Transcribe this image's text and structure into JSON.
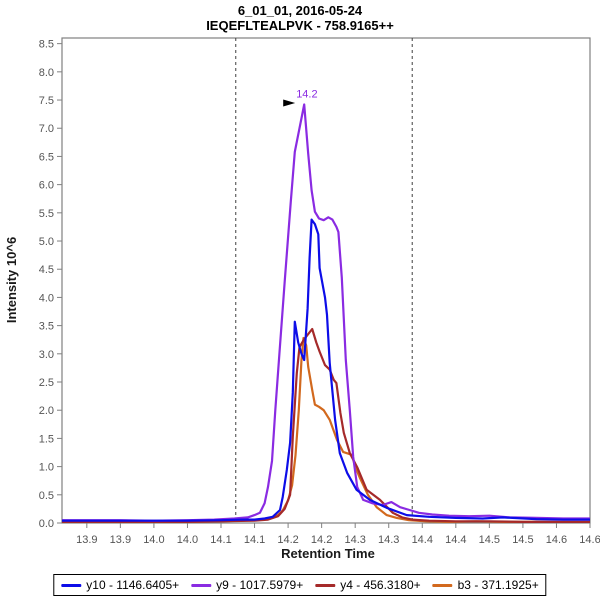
{
  "header": {
    "line1": "6_01_01, 2016-05-24",
    "line2": "IEQEFLTEALPVK - 758.9165++"
  },
  "chart_data": {
    "type": "line",
    "title": "6_01_01, 2016-05-24",
    "subtitle": "IEQEFLTEALPVK - 758.9165++",
    "xlabel": "Retention Time",
    "ylabel": "Intensity 10^6",
    "xlim": [
      13.813,
      14.6
    ],
    "ylim": [
      0,
      8.6
    ],
    "grid": false,
    "legend_position": "bottom",
    "frame_color": "#808080",
    "x_ticks": {
      "values": [
        13.85,
        13.9,
        13.95,
        14.0,
        14.05,
        14.1,
        14.15,
        14.2,
        14.25,
        14.3,
        14.35,
        14.4,
        14.45,
        14.5,
        14.55,
        14.6
      ],
      "labels": [
        "13.9",
        "13.9",
        "14.0",
        "14.0",
        "14.1",
        "14.1",
        "14.2",
        "14.2",
        "14.3",
        "14.3",
        "14.4",
        "14.4",
        "14.5",
        "14.5",
        "14.6",
        "14.6"
      ]
    },
    "y_ticks": {
      "values": [
        0,
        0.5,
        1,
        1.5,
        2,
        2.5,
        3,
        3.5,
        4,
        4.5,
        5,
        5.5,
        6,
        6.5,
        7,
        7.5,
        8,
        8.5
      ],
      "labels": [
        "0.0",
        "0.5",
        "1.0",
        "1.5",
        "2.0",
        "2.5",
        "3.0",
        "3.5",
        "4.0",
        "4.5",
        "5.0",
        "5.5",
        "6.0",
        "6.5",
        "7.0",
        "7.5",
        "8.0",
        "8.5"
      ]
    },
    "peak_boundaries": {
      "values": [
        14.072,
        14.335
      ],
      "style": "dashed",
      "color": "#3f3f3f"
    },
    "annotation": {
      "text": "14.2",
      "x": 14.174,
      "y": 7.42,
      "color": "#8A2BE2"
    },
    "series": [
      {
        "id": "y10",
        "label": "y10 - 1146.6405+",
        "color": "#0D0DE8",
        "points": [
          [
            13.813,
            0.04
          ],
          [
            13.85,
            0.04
          ],
          [
            13.9,
            0.04
          ],
          [
            13.95,
            0.04
          ],
          [
            14.0,
            0.04
          ],
          [
            14.05,
            0.05
          ],
          [
            14.08,
            0.06
          ],
          [
            14.1,
            0.06
          ],
          [
            14.115,
            0.08
          ],
          [
            14.127,
            0.11
          ],
          [
            14.138,
            0.23
          ],
          [
            14.142,
            0.46
          ],
          [
            14.148,
            0.94
          ],
          [
            14.153,
            1.42
          ],
          [
            14.157,
            2.31
          ],
          [
            14.16,
            3.57
          ],
          [
            14.165,
            3.2
          ],
          [
            14.17,
            3.0
          ],
          [
            14.174,
            2.89
          ],
          [
            14.179,
            3.8
          ],
          [
            14.182,
            4.7
          ],
          [
            14.185,
            5.38
          ],
          [
            14.19,
            5.3
          ],
          [
            14.195,
            5.12
          ],
          [
            14.197,
            4.52
          ],
          [
            14.205,
            4.0
          ],
          [
            14.208,
            3.69
          ],
          [
            14.212,
            2.84
          ],
          [
            14.22,
            1.83
          ],
          [
            14.227,
            1.24
          ],
          [
            14.238,
            0.89
          ],
          [
            14.252,
            0.59
          ],
          [
            14.272,
            0.41
          ],
          [
            14.297,
            0.27
          ],
          [
            14.327,
            0.14
          ],
          [
            14.36,
            0.11
          ],
          [
            14.4,
            0.09
          ],
          [
            14.44,
            0.08
          ],
          [
            14.47,
            0.1
          ],
          [
            14.52,
            0.07
          ],
          [
            14.56,
            0.06
          ],
          [
            14.6,
            0.06
          ]
        ]
      },
      {
        "id": "y9",
        "label": "y9 - 1017.5979+",
        "color": "#8A2BE2",
        "points": [
          [
            13.813,
            0.05
          ],
          [
            13.85,
            0.05
          ],
          [
            13.9,
            0.05
          ],
          [
            13.95,
            0.04
          ],
          [
            14.0,
            0.05
          ],
          [
            14.04,
            0.06
          ],
          [
            14.07,
            0.08
          ],
          [
            14.09,
            0.1
          ],
          [
            14.1,
            0.14
          ],
          [
            14.108,
            0.18
          ],
          [
            14.115,
            0.35
          ],
          [
            14.12,
            0.64
          ],
          [
            14.126,
            1.1
          ],
          [
            14.131,
            2.0
          ],
          [
            14.137,
            3.0
          ],
          [
            14.145,
            4.28
          ],
          [
            14.154,
            5.7
          ],
          [
            14.16,
            6.58
          ],
          [
            14.167,
            7.0
          ],
          [
            14.174,
            7.42
          ],
          [
            14.18,
            6.55
          ],
          [
            14.185,
            5.9
          ],
          [
            14.19,
            5.52
          ],
          [
            14.196,
            5.4
          ],
          [
            14.203,
            5.37
          ],
          [
            14.21,
            5.42
          ],
          [
            14.216,
            5.38
          ],
          [
            14.222,
            5.25
          ],
          [
            14.225,
            5.16
          ],
          [
            14.23,
            4.35
          ],
          [
            14.236,
            2.89
          ],
          [
            14.242,
            2.0
          ],
          [
            14.247,
            1.17
          ],
          [
            14.253,
            0.64
          ],
          [
            14.262,
            0.41
          ],
          [
            14.276,
            0.35
          ],
          [
            14.291,
            0.32
          ],
          [
            14.304,
            0.37
          ],
          [
            14.317,
            0.28
          ],
          [
            14.331,
            0.23
          ],
          [
            14.345,
            0.18
          ],
          [
            14.365,
            0.15
          ],
          [
            14.39,
            0.13
          ],
          [
            14.42,
            0.12
          ],
          [
            14.45,
            0.13
          ],
          [
            14.48,
            0.1
          ],
          [
            14.52,
            0.09
          ],
          [
            14.56,
            0.08
          ],
          [
            14.6,
            0.08
          ]
        ]
      },
      {
        "id": "y4",
        "label": "y4 - 456.3180+",
        "color": "#A52A2A",
        "points": [
          [
            13.813,
            0.02
          ],
          [
            13.9,
            0.02
          ],
          [
            14.0,
            0.02
          ],
          [
            14.05,
            0.03
          ],
          [
            14.1,
            0.04
          ],
          [
            14.12,
            0.06
          ],
          [
            14.135,
            0.12
          ],
          [
            14.145,
            0.25
          ],
          [
            14.153,
            0.5
          ],
          [
            14.157,
            1.53
          ],
          [
            14.163,
            2.66
          ],
          [
            14.167,
            3.12
          ],
          [
            14.174,
            3.26
          ],
          [
            14.18,
            3.35
          ],
          [
            14.186,
            3.44
          ],
          [
            14.192,
            3.2
          ],
          [
            14.197,
            3.04
          ],
          [
            14.205,
            2.8
          ],
          [
            14.212,
            2.72
          ],
          [
            14.218,
            2.54
          ],
          [
            14.222,
            2.48
          ],
          [
            14.228,
            1.95
          ],
          [
            14.233,
            1.6
          ],
          [
            14.242,
            1.24
          ],
          [
            14.253,
            0.99
          ],
          [
            14.267,
            0.59
          ],
          [
            14.287,
            0.41
          ],
          [
            14.306,
            0.18
          ],
          [
            14.32,
            0.1
          ],
          [
            14.335,
            0.06
          ],
          [
            14.36,
            0.04
          ],
          [
            14.4,
            0.03
          ],
          [
            14.45,
            0.03
          ],
          [
            14.5,
            0.02
          ],
          [
            14.55,
            0.02
          ],
          [
            14.6,
            0.02
          ]
        ]
      },
      {
        "id": "b3",
        "label": "b3 - 371.1925+",
        "color": "#D2691E",
        "points": [
          [
            13.813,
            0.02
          ],
          [
            13.9,
            0.02
          ],
          [
            14.0,
            0.02
          ],
          [
            14.05,
            0.03
          ],
          [
            14.1,
            0.05
          ],
          [
            14.12,
            0.08
          ],
          [
            14.135,
            0.14
          ],
          [
            14.142,
            0.22
          ],
          [
            14.15,
            0.4
          ],
          [
            14.156,
            0.67
          ],
          [
            14.161,
            1.2
          ],
          [
            14.166,
            2.0
          ],
          [
            14.17,
            2.9
          ],
          [
            14.173,
            3.28
          ],
          [
            14.177,
            3.15
          ],
          [
            14.18,
            2.77
          ],
          [
            14.186,
            2.36
          ],
          [
            14.19,
            2.1
          ],
          [
            14.196,
            2.06
          ],
          [
            14.203,
            2.0
          ],
          [
            14.212,
            1.83
          ],
          [
            14.223,
            1.47
          ],
          [
            14.232,
            1.26
          ],
          [
            14.245,
            1.21
          ],
          [
            14.25,
            1.0
          ],
          [
            14.257,
            0.8
          ],
          [
            14.269,
            0.5
          ],
          [
            14.282,
            0.28
          ],
          [
            14.297,
            0.14
          ],
          [
            14.312,
            0.09
          ],
          [
            14.33,
            0.05
          ],
          [
            14.355,
            0.03
          ],
          [
            14.39,
            0.02
          ],
          [
            14.43,
            0.03
          ],
          [
            14.47,
            0.02
          ],
          [
            14.52,
            0.02
          ],
          [
            14.56,
            0.01
          ],
          [
            14.6,
            0.01
          ]
        ]
      }
    ]
  }
}
